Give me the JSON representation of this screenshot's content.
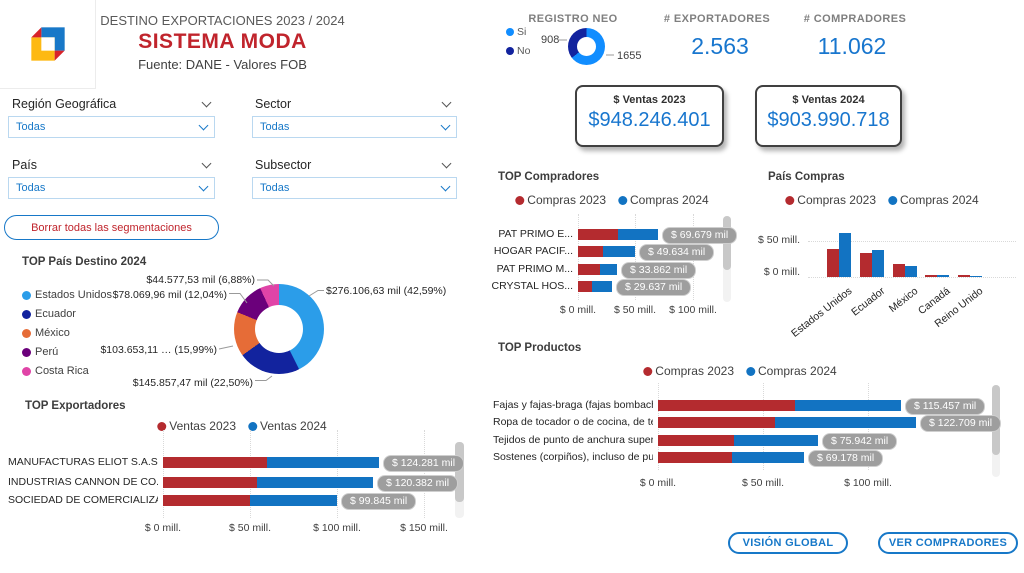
{
  "header": {
    "title": "DESTINO EXPORTACIONES 2023 / 2024",
    "brand": "SISTEMA MODA",
    "source": "Fuente: DANE - Valores FOB"
  },
  "filters": {
    "region": {
      "label": "Región Geográfica",
      "value": "Todas"
    },
    "sector": {
      "label": "Sector",
      "value": "Todas"
    },
    "pais": {
      "label": "País",
      "value": "Todas"
    },
    "subsector": {
      "label": "Subsector",
      "value": "Todas"
    },
    "clear_button": "Borrar todas las segmentaciones"
  },
  "kpis": {
    "num_exportadores": {
      "title": "# EXPORTADORES",
      "value": "2.563"
    },
    "num_compradores": {
      "title": "# COMPRADORES",
      "value": "11.062"
    },
    "ventas_2023": {
      "title": "$ Ventas 2023",
      "value": "$948.246.401"
    },
    "ventas_2024": {
      "title": "$ Ventas 2024",
      "value": "$903.990.718"
    }
  },
  "footer_buttons": {
    "vision_global": "VISIÓN GLOBAL",
    "ver_compradores": "VER COMPRADORES"
  },
  "colors": {
    "accent_blue": "#1778C8",
    "brand_red": "#C0242C",
    "value_blue": "#1876CE",
    "bar_red": "#B42B2F",
    "bar_blue": "#1273C2",
    "label_pill_gray": "#9E9E9E"
  },
  "chart_data": [
    {
      "id": "top_pais_destino",
      "type": "pie",
      "title": "TOP País Destino 2024",
      "legend": [
        "Estados Unidos",
        "Ecuador",
        "México",
        "Perú",
        "Costa Rica"
      ],
      "values_mil": [
        276106.63,
        145857.47,
        103653.11,
        78069.96,
        44577.53
      ],
      "percents": [
        42.59,
        22.5,
        15.99,
        12.04,
        6.88
      ],
      "colors": [
        "#2B9DE9",
        "#12239E",
        "#E66C37",
        "#6B007B",
        "#E044A7"
      ],
      "callouts": [
        "$276.106,63 mil (42,59%)",
        "$145.857,47 mil (22,50%)",
        "$103.653,11 … (15,99%)",
        "$78.069,96 mil (12,04%)",
        "$44.577,53 mil (6,88%)"
      ]
    },
    {
      "id": "registro_neo",
      "type": "pie",
      "title": "REGISTRO NEO",
      "legend": [
        "Si",
        "No"
      ],
      "values": [
        1655,
        908
      ],
      "colors": [
        "#118DFF",
        "#12239E"
      ],
      "left_label": "908",
      "right_label": "1655"
    },
    {
      "id": "top_exportadores",
      "type": "bar",
      "title": "TOP Exportadores",
      "series": [
        "Ventas 2023",
        "Ventas 2024"
      ],
      "series_colors": [
        "#B42B2F",
        "#1273C2"
      ],
      "categories": [
        "MANUFACTURAS ELIOT S.A.S.",
        "INDUSTRIAS CANNON DE CO...",
        "SOCIEDAD DE COMERCIALIZA..."
      ],
      "values_2023_mill": [
        60,
        54,
        50
      ],
      "values_2024_mill": [
        64.3,
        66.4,
        49.8
      ],
      "totals_label": [
        "$ 124.281 mil",
        "$ 120.382 mil",
        "$ 99.845 mil"
      ],
      "x_ticks": [
        "$ 0 mill.",
        "$ 50 mill.",
        "$ 100 mill.",
        "$ 150 mill."
      ],
      "xlim": [
        0,
        150
      ]
    },
    {
      "id": "top_compradores",
      "type": "bar",
      "title": "TOP Compradores",
      "series": [
        "Compras 2023",
        "Compras 2024"
      ],
      "series_colors": [
        "#B42B2F",
        "#1273C2"
      ],
      "categories": [
        "PAT PRIMO E...",
        "HOGAR PACIF...",
        "PAT PRIMO M...",
        "CRYSTAL HOS..."
      ],
      "values_2023_mill": [
        35,
        22,
        19,
        12
      ],
      "values_2024_mill": [
        34.7,
        27.6,
        14.9,
        17.6
      ],
      "totals_label": [
        "$ 69.679 mil",
        "$ 49.634 mil",
        "$ 33.862 mil",
        "$ 29.637 mil"
      ],
      "x_ticks": [
        "$ 0 mill.",
        "$ 50 mill.",
        "$ 100 mill."
      ],
      "xlim": [
        0,
        100
      ]
    },
    {
      "id": "pais_compras",
      "type": "bar",
      "title": "País Compras",
      "series": [
        "Compras 2023",
        "Compras 2024"
      ],
      "series_colors": [
        "#B42B2F",
        "#1273C2"
      ],
      "categories": [
        "Estados Unidos",
        "Ecuador",
        "México",
        "Canadá",
        "Reino Unido"
      ],
      "values_2023_mill": [
        39,
        33,
        18,
        1.5,
        1.5
      ],
      "values_2024_mill": [
        60,
        37,
        15,
        2.5,
        0.5
      ],
      "y_ticks": [
        "$ 0 mill.",
        "$ 50 mill."
      ],
      "ylim": [
        0,
        65
      ]
    },
    {
      "id": "top_productos",
      "type": "bar",
      "title": "TOP Productos",
      "series": [
        "Compras 2023",
        "Compras 2024"
      ],
      "series_colors": [
        "#B42B2F",
        "#1273C2"
      ],
      "categories": [
        "Fajas y fajas-braga (fajas bombacha...",
        "Ropa de tocador o de cocina, de te...",
        "Tejidos de punto de anchura superi...",
        "Sostenes (corpiños), incluso de pun..."
      ],
      "values_2023_mill": [
        65,
        55.5,
        36,
        35
      ],
      "values_2024_mill": [
        50.5,
        67.2,
        39.9,
        34.2
      ],
      "totals_label": [
        "$ 115.457 mil",
        "$ 122.709 mil",
        "$ 75.942 mil",
        "$ 69.178 mil"
      ],
      "x_ticks": [
        "$ 0 mill.",
        "$ 50 mill.",
        "$ 100 mill."
      ],
      "xlim": [
        0,
        100
      ]
    }
  ]
}
